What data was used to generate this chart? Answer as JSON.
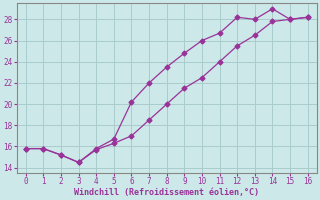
{
  "xlabel": "Windchill (Refroidissement éolien,°C)",
  "x_series": [
    0,
    1,
    2,
    3,
    4,
    5,
    6,
    7,
    8,
    9,
    10,
    11,
    12,
    13,
    14,
    15,
    16
  ],
  "line1_y": [
    15.8,
    15.8,
    15.2,
    14.5,
    15.8,
    16.7,
    20.2,
    22.0,
    23.5,
    24.8,
    26.0,
    26.7,
    28.2,
    28.0,
    29.0,
    28.0,
    28.2
  ],
  "line2_y": [
    15.8,
    15.8,
    15.2,
    14.5,
    15.7,
    16.3,
    17.0,
    18.5,
    20.0,
    21.5,
    22.5,
    24.0,
    25.5,
    26.5,
    27.8,
    28.0,
    28.2
  ],
  "line_color": "#993399",
  "bg_color": "#cce8e8",
  "grid_color": "#aacccc",
  "tick_color": "#993399",
  "label_color": "#993399",
  "ylim": [
    13.5,
    29.5
  ],
  "xlim": [
    -0.5,
    16.5
  ],
  "yticks": [
    14,
    16,
    18,
    20,
    22,
    24,
    26,
    28
  ],
  "xticks": [
    0,
    1,
    2,
    3,
    4,
    5,
    6,
    7,
    8,
    9,
    10,
    11,
    12,
    13,
    14,
    15,
    16
  ]
}
